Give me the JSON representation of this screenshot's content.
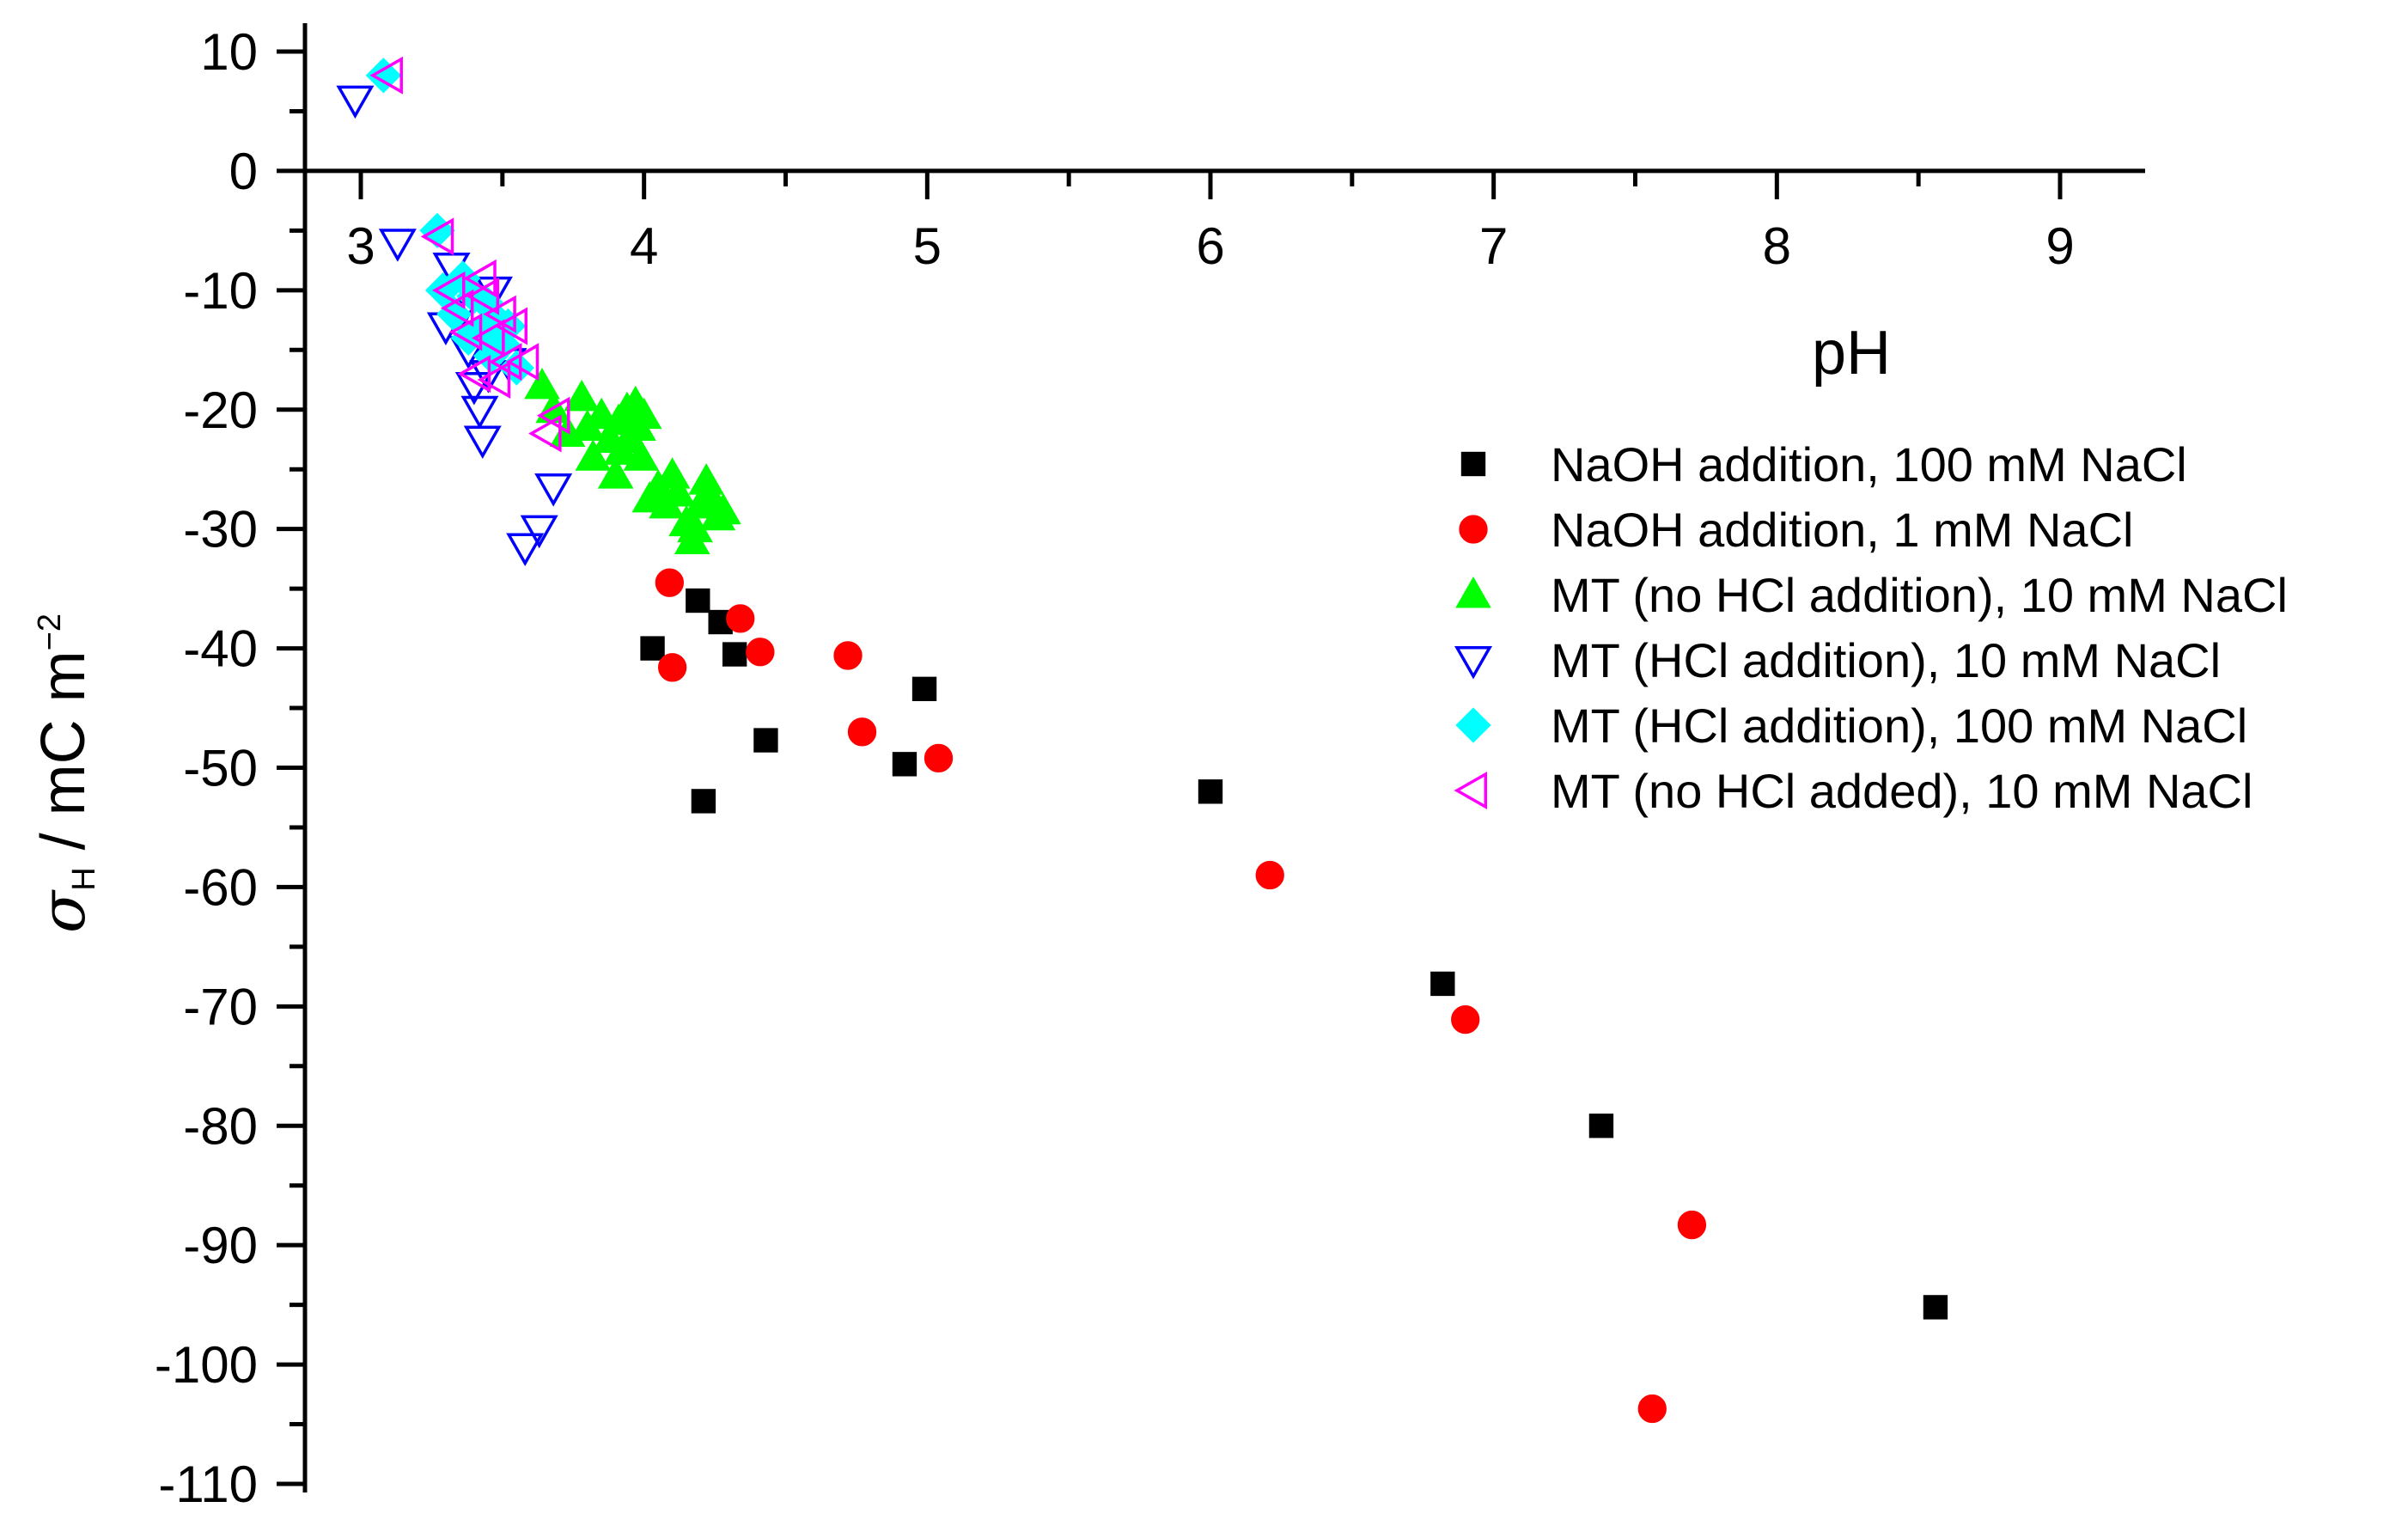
{
  "chart_data": {
    "type": "scatter",
    "title": "",
    "xlabel": "pH",
    "ylabel": {
      "symbol": "σ",
      "subscript": "H",
      "unit": " / mC m",
      "exponent": "−2"
    },
    "xlim": [
      2.55,
      9.3
    ],
    "ylim": [
      -110,
      12
    ],
    "x_ticks": [
      3,
      4,
      5,
      6,
      7,
      8,
      9
    ],
    "y_ticks": [
      10,
      0,
      -10,
      -20,
      -30,
      -40,
      -50,
      -60,
      -70,
      -80,
      -90,
      -100,
      -110
    ],
    "x_axis_position": "y = 0",
    "grid": false,
    "legend_position": "right",
    "series": [
      {
        "name": "NaOH addition, 100 mM NaCl",
        "marker": "square",
        "color": "#000000",
        "filled": true,
        "x": [
          4.03,
          4.19,
          4.21,
          4.27,
          4.32,
          4.43,
          4.92,
          4.99,
          6.0,
          6.82,
          7.38,
          8.56
        ],
        "y": [
          -40.0,
          -36.0,
          -52.8,
          -37.8,
          -40.5,
          -47.7,
          -49.7,
          -43.4,
          -52.0,
          -68.1,
          -80.0,
          -95.2
        ]
      },
      {
        "name": "NaOH addition, 1 mM NaCl",
        "marker": "circle",
        "color": "#ff0000",
        "filled": true,
        "x": [
          4.09,
          4.1,
          4.34,
          4.41,
          4.72,
          4.77,
          5.04,
          6.21,
          6.9,
          7.56,
          7.7
        ],
        "y": [
          -34.5,
          -41.6,
          -37.5,
          -40.3,
          -40.6,
          -47.0,
          -49.2,
          -59.0,
          -71.1,
          -103.7,
          -88.3
        ]
      },
      {
        "name": "MT (no HCl addition), 10 mM NaCl",
        "marker": "triangle-up",
        "color": "#00ff00",
        "filled": true,
        "x": [
          3.64,
          3.68,
          3.73,
          3.78,
          3.8,
          3.82,
          3.85,
          3.88,
          3.9,
          3.91,
          3.92,
          3.94,
          3.95,
          3.97,
          3.98,
          3.99,
          4.0,
          4.02,
          4.05,
          4.08,
          4.1,
          4.12,
          4.15,
          4.17,
          4.18,
          4.2,
          4.22,
          4.24,
          4.26,
          4.28
        ],
        "y": [
          -18.0,
          -20.0,
          -22.0,
          -19.0,
          -21.5,
          -24.0,
          -20.5,
          -22.5,
          -25.5,
          -21.0,
          -23.5,
          -20.0,
          -22.5,
          -19.5,
          -21.5,
          -24.0,
          -20.5,
          -27.5,
          -26.5,
          -28.0,
          -25.5,
          -27.0,
          -29.5,
          -31.0,
          -30.0,
          -28.0,
          -26.0,
          -27.5,
          -29.0,
          -28.5
        ]
      },
      {
        "name": "MT (HCl addition), 10 mM NaCl",
        "marker": "triangle-down",
        "color": "#0000ff",
        "filled": false,
        "x": [
          2.98,
          3.13,
          3.3,
          3.32,
          3.35,
          3.38,
          3.4,
          3.42,
          3.43,
          3.45,
          3.47,
          3.5,
          3.52,
          3.58,
          3.63,
          3.68
        ],
        "y": [
          6.0,
          -6.0,
          -13.0,
          -8.0,
          -12.0,
          -15.0,
          -18.0,
          -20.0,
          -22.5,
          -17.0,
          -10.0,
          -14.0,
          -16.0,
          -31.5,
          -30.0,
          -26.5
        ]
      },
      {
        "name": "MT (HCl addition), 100 mM NaCl",
        "marker": "diamond",
        "color": "#00ffff",
        "filled": true,
        "x": [
          3.08,
          3.27,
          3.29,
          3.33,
          3.36,
          3.38,
          3.4,
          3.42,
          3.44,
          3.46,
          3.48,
          3.5,
          3.52,
          3.55
        ],
        "y": [
          8.0,
          -5.0,
          -10.0,
          -12.0,
          -9.0,
          -14.0,
          -10.5,
          -13.5,
          -11.0,
          -15.5,
          -12.5,
          -14.5,
          -13.0,
          -16.5
        ]
      },
      {
        "name": "MT (no HCl added), 10 mM NaCl",
        "marker": "triangle-left",
        "color": "#ff00ff",
        "filled": false,
        "x": [
          3.1,
          3.28,
          3.32,
          3.35,
          3.38,
          3.41,
          3.43,
          3.44,
          3.46,
          3.48,
          3.5,
          3.52,
          3.54,
          3.58,
          3.66,
          3.69
        ],
        "y": [
          8.0,
          -5.5,
          -10.0,
          -11.5,
          -13.5,
          -17.0,
          -9.0,
          -10.5,
          -14.0,
          -17.5,
          -12.0,
          -16.0,
          -13.0,
          -16.0,
          -22.0,
          -20.5
        ]
      }
    ]
  }
}
